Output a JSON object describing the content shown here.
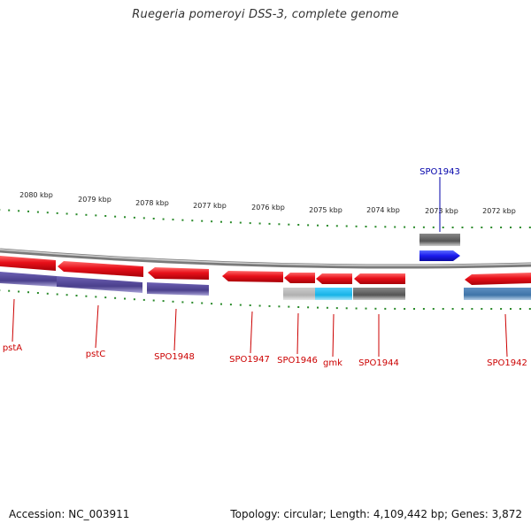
{
  "title": "Ruegeria pomeroyi DSS-3, complete genome",
  "footer": {
    "accession": "Accession: NC_003911",
    "summary": "Topology: circular; Length: 4,109,442 bp; Genes: 3,872"
  },
  "scale": {
    "ticks": [
      {
        "label": "2080 kbp"
      },
      {
        "label": "2079 kbp"
      },
      {
        "label": "2078 kbp"
      },
      {
        "label": "2077 kbp"
      },
      {
        "label": "2076 kbp"
      },
      {
        "label": "2075 kbp"
      },
      {
        "label": "2074 kbp"
      },
      {
        "label": "2073 kbp"
      },
      {
        "label": "2072 kbp"
      }
    ]
  },
  "genes": [
    {
      "label": "pstA",
      "strand": "-"
    },
    {
      "label": "pstC",
      "strand": "-"
    },
    {
      "label": "SPO1948",
      "strand": "-"
    },
    {
      "label": "SPO1947",
      "strand": "-"
    },
    {
      "label": "SPO1946",
      "strand": "-"
    },
    {
      "label": "gmk",
      "strand": "-"
    },
    {
      "label": "SPO1944",
      "strand": "-"
    },
    {
      "label": "SPO1943",
      "strand": "+"
    },
    {
      "label": "SPO1942",
      "strand": "-"
    }
  ],
  "colors": {
    "gene_minus": "#e8101a",
    "gene_plus": "#1a1aee",
    "label_minus": "#cc0000",
    "label_plus": "#0000aa",
    "backbone": "#9a9a9a",
    "tick": "#2a8a2a",
    "track_purple": "#4a3f8c",
    "track_gray": "#666666",
    "track_light_gray": "#b9b9b9",
    "track_cyan": "#17b3e6",
    "track_steel": "#3f74a8"
  }
}
